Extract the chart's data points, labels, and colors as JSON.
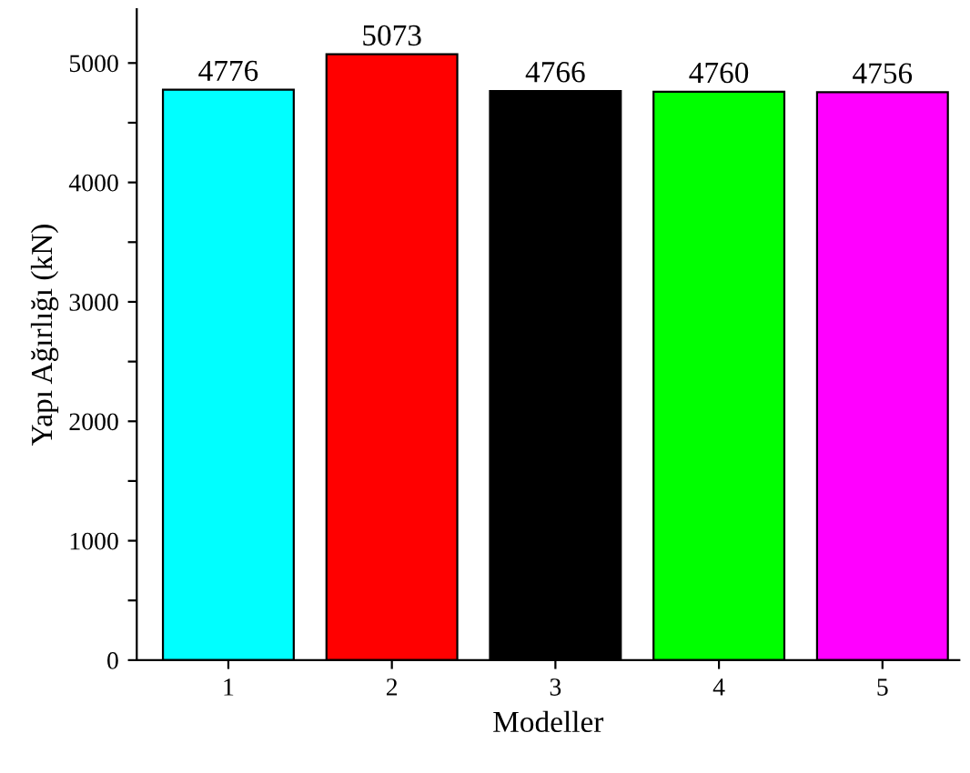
{
  "chart_data": {
    "type": "bar",
    "xlabel": "Modeller",
    "ylabel": "Yapı Ağırlığı (kN)",
    "categories": [
      "1",
      "2",
      "3",
      "4",
      "5"
    ],
    "values": [
      4776,
      5073,
      4766,
      4760,
      4756
    ],
    "colors": [
      "#00ffff",
      "#ff0000",
      "#000000",
      "#00ff00",
      "#ff00ff"
    ],
    "ylim": [
      0,
      5450
    ],
    "yticks": [
      0,
      {
        "value": 500,
        "label": null
      },
      1000,
      {
        "value": 1500,
        "label": null
      },
      2000,
      {
        "value": 2500,
        "label": null
      },
      3000,
      {
        "value": 3500,
        "label": null
      },
      4000,
      {
        "value": 4500,
        "label": null
      },
      5000
    ],
    "data_labels": true,
    "grid": false,
    "legend": false
  }
}
